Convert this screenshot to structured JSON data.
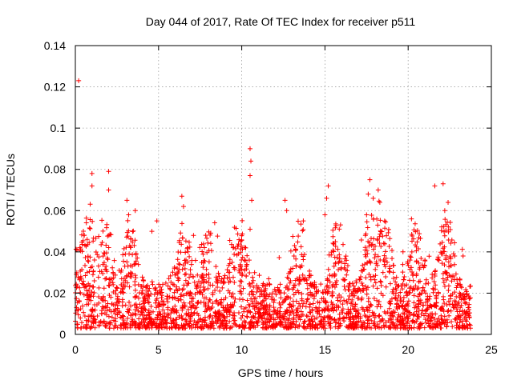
{
  "chart_data": {
    "type": "scatter",
    "title": "Day 044 of 2017, Rate Of TEC Index for receiver p511",
    "xlabel": "GPS time / hours",
    "ylabel": "ROTI / TECUs",
    "xlim": [
      0,
      25
    ],
    "ylim": [
      0,
      0.14
    ],
    "x_ticks": [
      0,
      5,
      10,
      15,
      20,
      25
    ],
    "x_tick_labels": [
      "0",
      "5",
      "10",
      "15",
      "20",
      "25"
    ],
    "y_ticks": [
      0,
      0.02,
      0.04,
      0.06,
      0.08,
      0.1,
      0.12,
      0.14
    ],
    "y_tick_labels": [
      "0",
      "0.02",
      "0.04",
      "0.06",
      "0.08",
      "0.1",
      "0.12",
      "0.14"
    ],
    "grid": true,
    "marker": "+",
    "color": "#ff0000",
    "series": [
      {
        "name": "ROTI",
        "x_range": [
          0,
          23.75
        ],
        "baseline_range": [
          0.003,
          0.03
        ],
        "notable_points": [
          {
            "x": 0.2,
            "y": 0.123
          },
          {
            "x": 0.1,
            "y": 0.041
          },
          {
            "x": 1.0,
            "y": 0.078
          },
          {
            "x": 1.0,
            "y": 0.072
          },
          {
            "x": 2.0,
            "y": 0.079
          },
          {
            "x": 2.0,
            "y": 0.07
          },
          {
            "x": 3.1,
            "y": 0.065
          },
          {
            "x": 3.2,
            "y": 0.058
          },
          {
            "x": 3.6,
            "y": 0.06
          },
          {
            "x": 4.6,
            "y": 0.05
          },
          {
            "x": 4.9,
            "y": 0.055
          },
          {
            "x": 6.4,
            "y": 0.067
          },
          {
            "x": 6.5,
            "y": 0.062
          },
          {
            "x": 7.1,
            "y": 0.048
          },
          {
            "x": 10.5,
            "y": 0.09
          },
          {
            "x": 10.55,
            "y": 0.084
          },
          {
            "x": 10.5,
            "y": 0.077
          },
          {
            "x": 10.6,
            "y": 0.065
          },
          {
            "x": 10.5,
            "y": 0.051
          },
          {
            "x": 12.6,
            "y": 0.065
          },
          {
            "x": 12.7,
            "y": 0.06
          },
          {
            "x": 13.7,
            "y": 0.055
          },
          {
            "x": 15.2,
            "y": 0.072
          },
          {
            "x": 15.1,
            "y": 0.066
          },
          {
            "x": 15.0,
            "y": 0.058
          },
          {
            "x": 17.7,
            "y": 0.075
          },
          {
            "x": 17.6,
            "y": 0.068
          },
          {
            "x": 17.9,
            "y": 0.066
          },
          {
            "x": 18.2,
            "y": 0.07
          },
          {
            "x": 18.3,
            "y": 0.064
          },
          {
            "x": 17.5,
            "y": 0.058
          },
          {
            "x": 20.2,
            "y": 0.056
          },
          {
            "x": 21.6,
            "y": 0.072
          },
          {
            "x": 22.1,
            "y": 0.073
          },
          {
            "x": 22.4,
            "y": 0.064
          },
          {
            "x": 22.2,
            "y": 0.06
          },
          {
            "x": 23.3,
            "y": 0.038
          }
        ]
      }
    ]
  }
}
